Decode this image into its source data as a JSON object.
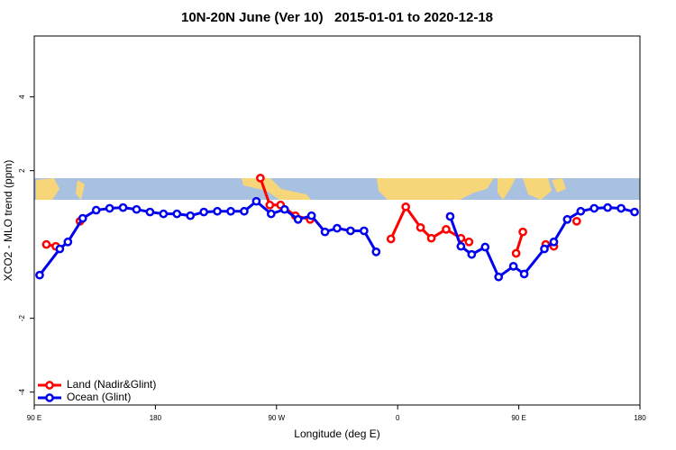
{
  "chart_data": {
    "type": "line",
    "title": "10N-20N June (Ver 10)   2015-01-01 to 2020-12-18",
    "x_label": "Longitude (deg E)",
    "y_label": "XCO2 - MLO trend (ppm)",
    "xlim": [
      90,
      540
    ],
    "xticks": [
      {
        "value": 90,
        "label": "90 E"
      },
      {
        "value": 180,
        "label": "180"
      },
      {
        "value": 270,
        "label": "90 W"
      },
      {
        "value": 360,
        "label": "0"
      },
      {
        "value": 450,
        "label": "90 E"
      },
      {
        "value": 540,
        "label": "180"
      }
    ],
    "ylim": [
      -4.35,
      5.65
    ],
    "yticks": [
      -4,
      -2,
      2,
      4
    ],
    "legend": "bottom-left",
    "series": [
      {
        "name": "Land (Nadir&Glint)",
        "color": "#ff0000",
        "x": [
          99,
          106,
          null,
          124,
          null,
          258,
          265,
          273,
          284,
          295,
          null,
          355,
          366,
          377,
          385,
          396,
          407,
          413,
          null,
          448,
          453,
          null,
          470,
          476,
          null,
          493
        ],
        "values": [
          0.0,
          -0.05,
          null,
          0.63,
          null,
          1.8,
          1.07,
          1.07,
          0.78,
          0.68,
          null,
          0.15,
          1.02,
          0.46,
          0.17,
          0.41,
          0.17,
          0.07,
          null,
          -0.24,
          0.34,
          null,
          0.0,
          -0.05,
          null,
          0.63
        ]
      },
      {
        "name": "Ocean (Glint)",
        "color": "#0000ee",
        "x": [
          94,
          109,
          115,
          126,
          136,
          146,
          156,
          166,
          176,
          186,
          196,
          206,
          216,
          226,
          236,
          246,
          255,
          266,
          276,
          286,
          296,
          306,
          315,
          325,
          335,
          344,
          null,
          399,
          407,
          415,
          425,
          435,
          446,
          454,
          469,
          476,
          486,
          496,
          506,
          516,
          526,
          536
        ],
        "values": [
          -0.83,
          -0.12,
          0.07,
          0.71,
          0.93,
          0.98,
          1.0,
          0.95,
          0.88,
          0.83,
          0.83,
          0.78,
          0.88,
          0.9,
          0.9,
          0.9,
          1.17,
          0.83,
          0.95,
          0.68,
          0.78,
          0.34,
          0.44,
          0.37,
          0.37,
          -0.2,
          null,
          0.76,
          -0.05,
          -0.27,
          -0.07,
          -0.88,
          -0.59,
          -0.8,
          -0.12,
          0.07,
          0.68,
          0.9,
          0.98,
          1.0,
          0.98,
          0.88
        ]
      }
    ]
  }
}
